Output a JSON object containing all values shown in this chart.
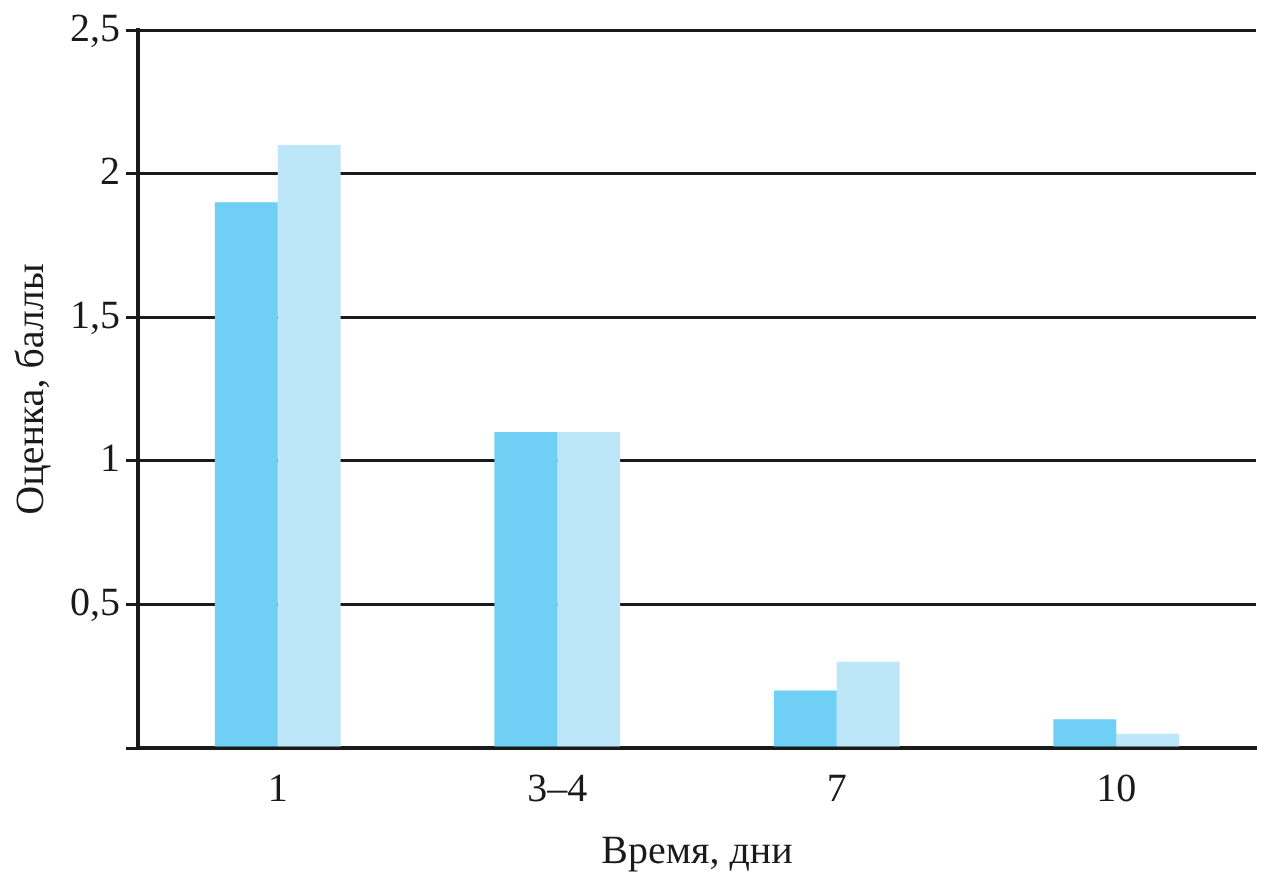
{
  "chart_data": {
    "type": "bar",
    "xlabel": "Время, дни",
    "ylabel": "Оценка, баллы",
    "categories": [
      "1",
      "3–4",
      "7",
      "10"
    ],
    "series": [
      {
        "color": "#6fcff4",
        "values": [
          1.9,
          1.1,
          0.2,
          0.1
        ]
      },
      {
        "color": "#bde6f8",
        "values": [
          2.1,
          1.1,
          0.3,
          0.05
        ]
      }
    ],
    "ylim": [
      0,
      2.5
    ],
    "yticks": [
      {
        "value": 0,
        "label": null
      },
      "0,5",
      1,
      "1,5",
      2,
      "2,5"
    ],
    "grid": "y",
    "legend": false
  }
}
